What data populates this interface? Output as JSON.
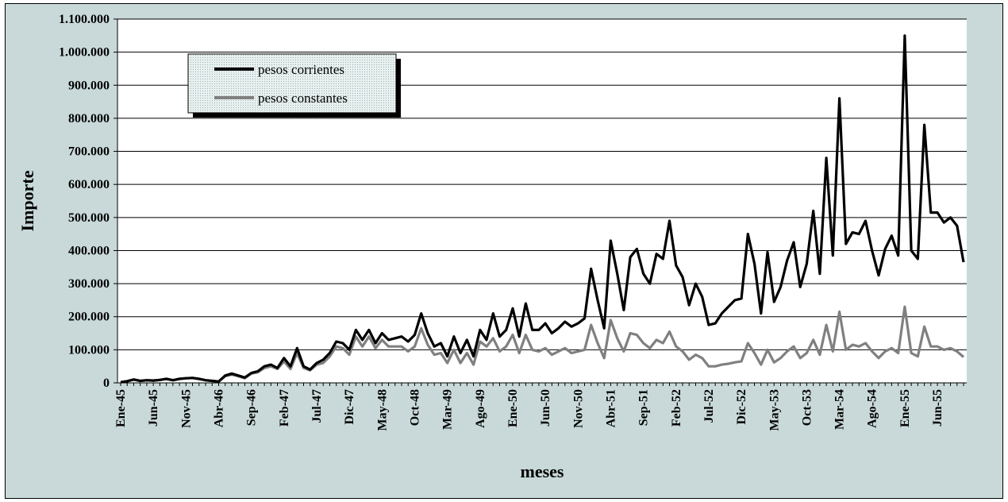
{
  "chart_data": {
    "type": "line",
    "xlabel": "meses",
    "ylabel": "Importe",
    "ylim": [
      0,
      1100000
    ],
    "y_ticks": [
      0,
      100000,
      200000,
      300000,
      400000,
      500000,
      600000,
      700000,
      800000,
      900000,
      1000000,
      1100000
    ],
    "y_tick_labels": [
      "0",
      "100.000",
      "200.000",
      "300.000",
      "400.000",
      "500.000",
      "600.000",
      "700.000",
      "800.000",
      "900.000",
      "1.000.000",
      "1.100.000"
    ],
    "x_tick_labels": [
      "Ene-45",
      "Jun-45",
      "Nov-45",
      "Abr-46",
      "Sep-46",
      "Feb-47",
      "Jul-47",
      "Dic-47",
      "May-48",
      "Oct-48",
      "Mar-49",
      "Ago-49",
      "Ene-50",
      "Jun-50",
      "Nov-50",
      "Abr-51",
      "Sep-51",
      "Feb-52",
      "Jul-52",
      "Dic-52",
      "May-53",
      "Oct-53",
      "Mar-54",
      "Ago-54",
      "Ene-55",
      "Jun-55"
    ],
    "grid": "horizontal",
    "legend_position": "top-left",
    "series": [
      {
        "name": "pesos corrientes",
        "color": "#000000",
        "values": [
          2000,
          5000,
          10000,
          6000,
          8000,
          7000,
          9000,
          12000,
          8000,
          12000,
          14000,
          15000,
          12000,
          8000,
          6000,
          4000,
          22000,
          28000,
          22000,
          16000,
          30000,
          35000,
          50000,
          55000,
          45000,
          75000,
          50000,
          105000,
          50000,
          40000,
          60000,
          70000,
          90000,
          125000,
          120000,
          100000,
          160000,
          130000,
          160000,
          120000,
          150000,
          130000,
          135000,
          140000,
          125000,
          145000,
          210000,
          150000,
          110000,
          120000,
          80000,
          140000,
          90000,
          130000,
          80000,
          160000,
          130000,
          210000,
          140000,
          160000,
          225000,
          140000,
          240000,
          160000,
          160000,
          180000,
          150000,
          165000,
          185000,
          170000,
          180000,
          195000,
          345000,
          250000,
          165000,
          430000,
          330000,
          220000,
          380000,
          405000,
          330000,
          300000,
          390000,
          375000,
          490000,
          355000,
          320000,
          235000,
          300000,
          260000,
          175000,
          180000,
          210000,
          230000,
          250000,
          255000,
          450000,
          360000,
          210000,
          395000,
          245000,
          290000,
          370000,
          425000,
          290000,
          360000,
          520000,
          330000,
          680000,
          385000,
          860000,
          420000,
          455000,
          450000,
          490000,
          400000,
          325000,
          405000,
          445000,
          385000,
          1050000,
          400000,
          375000,
          780000,
          515000,
          515000,
          485000,
          500000,
          475000,
          365000
        ]
      },
      {
        "name": "pesos constantes",
        "color": "#808080",
        "values": [
          2000,
          5000,
          10000,
          6000,
          8000,
          7000,
          9000,
          12000,
          8000,
          12000,
          14000,
          15000,
          12000,
          8000,
          6000,
          4000,
          20000,
          25000,
          20000,
          14000,
          28000,
          32000,
          45000,
          50000,
          42000,
          65000,
          42000,
          90000,
          45000,
          38000,
          55000,
          60000,
          80000,
          110000,
          105000,
          85000,
          140000,
          110000,
          140000,
          105000,
          130000,
          110000,
          110000,
          110000,
          95000,
          110000,
          165000,
          115000,
          85000,
          90000,
          60000,
          100000,
          60000,
          90000,
          55000,
          125000,
          110000,
          135000,
          95000,
          110000,
          145000,
          90000,
          145000,
          100000,
          95000,
          105000,
          85000,
          95000,
          105000,
          90000,
          95000,
          100000,
          175000,
          120000,
          75000,
          190000,
          135000,
          95000,
          150000,
          145000,
          120000,
          105000,
          130000,
          120000,
          155000,
          110000,
          95000,
          70000,
          85000,
          75000,
          50000,
          50000,
          55000,
          58000,
          62000,
          65000,
          120000,
          90000,
          55000,
          100000,
          62000,
          75000,
          95000,
          110000,
          75000,
          90000,
          130000,
          85000,
          175000,
          95000,
          215000,
          100000,
          115000,
          110000,
          120000,
          95000,
          75000,
          95000,
          105000,
          90000,
          230000,
          90000,
          80000,
          170000,
          110000,
          110000,
          100000,
          105000,
          95000,
          78000
        ]
      }
    ]
  }
}
